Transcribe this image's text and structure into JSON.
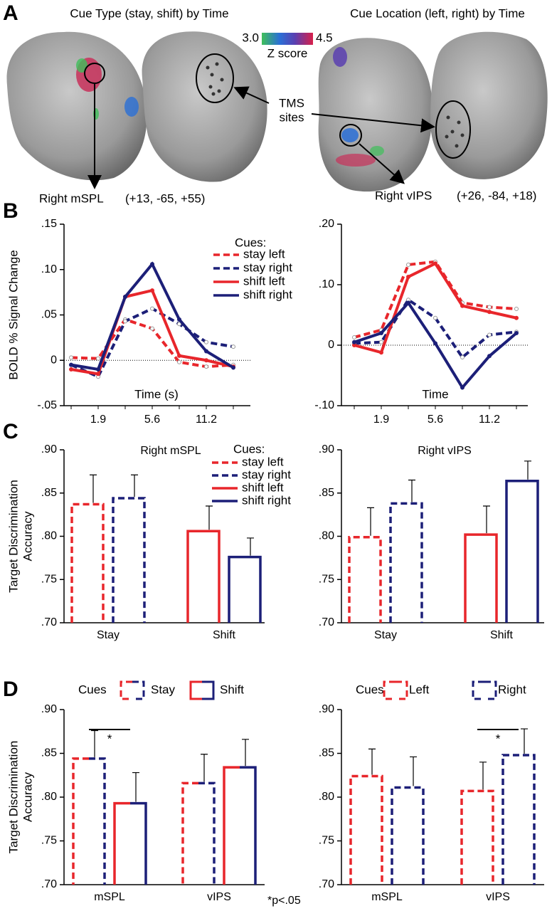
{
  "panel_labels": [
    "A",
    "B",
    "C",
    "D"
  ],
  "panel_a": {
    "titles": [
      "Cue Type (stay, shift) by Time",
      "Cue Location (left, right) by Time"
    ],
    "colorbar": {
      "ticks": [
        {
          "value": 3,
          "label": "3.0"
        },
        {
          "value": 4.5,
          "label": "4.5"
        }
      ],
      "label": "Z score"
    },
    "tms_label": [
      "TMS",
      "sites"
    ],
    "regions": [
      "Right mSPL",
      "Right vIPS"
    ],
    "coords": [
      "(+13, -65, +55)",
      "(+26, -84, +18)"
    ]
  },
  "footnote": "*p<.05",
  "chart_data": [
    {
      "type": "line",
      "ylabel": [
        "BOLD % Signal Change"
      ],
      "xlabel": "Time (s)",
      "legend_title": "Cues:",
      "categories": [
        null,
        "1.9",
        null,
        "5.6",
        null,
        "11.2",
        null
      ],
      "ylim": [
        -0.05,
        0.15
      ],
      "yticks": [
        {
          "value": -0.05,
          "label": "-.05"
        },
        0,
        {
          "value": 0.05,
          "label": ".05"
        },
        {
          "value": 0.1,
          "label": ".10"
        },
        {
          "value": 0.15,
          "label": ".15"
        }
      ],
      "zero_line": true,
      "series": [
        {
          "name": "stay left",
          "color": "#e8262b",
          "dashed": true,
          "values": [
            0.003,
            0.002,
            0.045,
            0.035,
            -0.002,
            -0.007,
            -0.005
          ]
        },
        {
          "name": "stay right",
          "color": "#1c1f78",
          "dashed": true,
          "values": [
            -0.005,
            -0.018,
            0.043,
            0.057,
            0.04,
            0.02,
            0.015
          ]
        },
        {
          "name": "shift left",
          "color": "#e8262b",
          "dashed": false,
          "values": [
            -0.01,
            -0.015,
            0.07,
            0.077,
            0.005,
            0.0,
            -0.007
          ]
        },
        {
          "name": "shift right",
          "color": "#1c1f78",
          "dashed": false,
          "values": [
            -0.005,
            -0.01,
            0.07,
            0.106,
            0.045,
            0.01,
            -0.008
          ]
        }
      ]
    },
    {
      "type": "line",
      "xlabel": "Time",
      "categories": [
        null,
        "1.9",
        null,
        "5.6",
        null,
        "11.2",
        null
      ],
      "ylim": [
        -0.1,
        0.2
      ],
      "yticks": [
        {
          "value": -0.1,
          "label": "-.10"
        },
        0,
        {
          "value": 0.1,
          "label": ".10"
        },
        {
          "value": 0.2,
          "label": ".20"
        }
      ],
      "zero_line": true,
      "series": [
        {
          "color": "#e8262b",
          "dashed": true,
          "values": [
            0.013,
            0.025,
            0.133,
            0.138,
            0.07,
            0.063,
            0.06
          ]
        },
        {
          "color": "#1c1f78",
          "dashed": true,
          "values": [
            0.003,
            0.005,
            0.075,
            0.045,
            -0.02,
            0.017,
            0.022
          ]
        },
        {
          "color": "#e8262b",
          "dashed": false,
          "values": [
            0.0,
            -0.012,
            0.113,
            0.135,
            0.065,
            0.055,
            0.045
          ]
        },
        {
          "color": "#1c1f78",
          "dashed": false,
          "values": [
            0.005,
            0.02,
            0.07,
            0.003,
            -0.07,
            -0.018,
            0.02
          ]
        }
      ]
    },
    {
      "type": "bar",
      "title": "Right mSPL",
      "ylabel": [
        "Target Discrimination",
        "Accuracy"
      ],
      "legend_title": "Cues:",
      "categories": [
        "Stay",
        "Shift"
      ],
      "ylim": [
        0.7,
        0.9
      ],
      "yticks": [
        {
          "value": 0.7,
          "label": ".70"
        },
        {
          "value": 0.75,
          "label": ".75"
        },
        {
          "value": 0.8,
          "label": ".80"
        },
        {
          "value": 0.85,
          "label": ".85"
        },
        {
          "value": 0.9,
          "label": ".90"
        }
      ],
      "series": [
        {
          "name": "stay left",
          "color": "#e8262b",
          "dashed": true,
          "values": [
            0.837,
            null
          ],
          "errors": [
            0.034,
            null
          ]
        },
        {
          "name": "stay right",
          "color": "#1c1f78",
          "dashed": true,
          "values": [
            0.844,
            null
          ],
          "errors": [
            0.027,
            null
          ]
        },
        {
          "name": "shift left",
          "color": "#e8262b",
          "dashed": false,
          "values": [
            null,
            0.806
          ],
          "errors": [
            null,
            0.029
          ]
        },
        {
          "name": "shift right",
          "color": "#1c1f78",
          "dashed": false,
          "values": [
            null,
            0.776
          ],
          "errors": [
            null,
            0.022
          ]
        }
      ]
    },
    {
      "type": "bar",
      "title": "Right vIPS",
      "categories": [
        "Stay",
        "Shift"
      ],
      "ylim": [
        0.7,
        0.9
      ],
      "yticks": [
        {
          "value": 0.7,
          "label": ".70"
        },
        {
          "value": 0.75,
          "label": ".75"
        },
        {
          "value": 0.8,
          "label": ".80"
        },
        {
          "value": 0.85,
          "label": ".85"
        },
        {
          "value": 0.9,
          "label": ".90"
        }
      ],
      "series": [
        {
          "color": "#e8262b",
          "dashed": true,
          "values": [
            0.799,
            null
          ],
          "errors": [
            0.034,
            null
          ]
        },
        {
          "color": "#1c1f78",
          "dashed": true,
          "values": [
            0.838,
            null
          ],
          "errors": [
            0.027,
            null
          ]
        },
        {
          "color": "#e8262b",
          "dashed": false,
          "values": [
            null,
            0.802
          ],
          "errors": [
            null,
            0.033
          ]
        },
        {
          "color": "#1c1f78",
          "dashed": false,
          "values": [
            null,
            0.864
          ],
          "errors": [
            null,
            0.023
          ]
        }
      ]
    },
    {
      "type": "bar",
      "ylabel": [
        "Target Discrimination",
        "Accuracy"
      ],
      "legend_title": "Cues",
      "categories": [
        "mSPL",
        "vIPS"
      ],
      "ylim": [
        0.7,
        0.9
      ],
      "yticks": [
        {
          "value": 0.7,
          "label": ".70"
        },
        {
          "value": 0.75,
          "label": ".75"
        },
        {
          "value": 0.8,
          "label": ".80"
        },
        {
          "value": 0.85,
          "label": ".85"
        },
        {
          "value": 0.9,
          "label": ".90"
        }
      ],
      "annotation": "*",
      "annotation_category": 0,
      "series": [
        {
          "name": "Stay",
          "colors": [
            "#e8262b",
            "#1c1f78"
          ],
          "dashed": true,
          "values": [
            0.844,
            0.816
          ],
          "errors": [
            0.032,
            0.033
          ]
        },
        {
          "name": "Shift",
          "colors": [
            "#e8262b",
            "#1c1f78"
          ],
          "dashed": false,
          "values": [
            0.793,
            0.834
          ],
          "errors": [
            0.035,
            0.032
          ]
        }
      ]
    },
    {
      "type": "bar",
      "legend_title": "Cues",
      "categories": [
        "mSPL",
        "vIPS"
      ],
      "ylim": [
        0.7,
        0.9
      ],
      "yticks": [
        {
          "value": 0.7,
          "label": ".70"
        },
        {
          "value": 0.75,
          "label": ".75"
        },
        {
          "value": 0.8,
          "label": ".80"
        },
        {
          "value": 0.85,
          "label": ".85"
        },
        {
          "value": 0.9,
          "label": ".90"
        }
      ],
      "annotation": "*",
      "annotation_category": 1,
      "series": [
        {
          "name": "Left",
          "color": "#e8262b",
          "dashed": true,
          "values": [
            0.824,
            0.807
          ],
          "errors": [
            0.031,
            0.033
          ]
        },
        {
          "name": "Right",
          "color": "#1c1f78",
          "dashed": true,
          "values": [
            0.811,
            0.848
          ],
          "errors": [
            0.035,
            0.03
          ]
        }
      ]
    }
  ]
}
